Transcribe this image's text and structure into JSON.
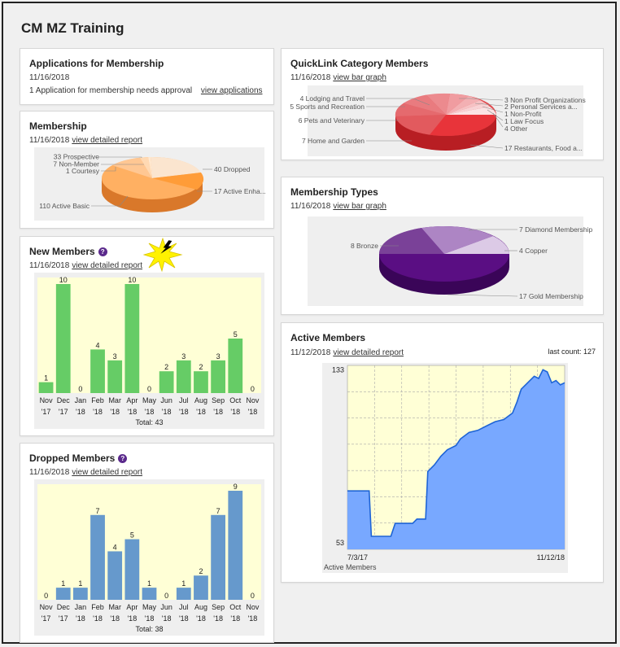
{
  "page": {
    "title": "CM MZ Training"
  },
  "applications": {
    "title": "Applications for Membership",
    "date": "11/16/2018",
    "message": "1 Application for membership needs approval",
    "link": "view applications"
  },
  "membership": {
    "title": "Membership",
    "date": "11/16/2018",
    "link": "view detailed report",
    "labels": [
      "33 Prospective",
      "7 Non-Member",
      "1 Courtesy",
      "110 Active Basic",
      "40 Dropped",
      "17 Active Enha..."
    ]
  },
  "quicklink": {
    "title": "QuickLink Category Members",
    "date": "11/16/2018",
    "link": "view bar graph",
    "labels_left": [
      "4 Lodging and Travel",
      "5 Sports and Recreation",
      "6 Pets and Veterinary",
      "7 Home and Garden"
    ],
    "labels_right": [
      "3 Non Profit Organizations",
      "2 Personal Services a...",
      "1 Non-Profit",
      "1 Law Focus",
      "4 Other",
      "17 Restaurants, Food a..."
    ]
  },
  "membership_types": {
    "title": "Membership Types",
    "date": "11/16/2018",
    "link": "view bar graph",
    "labels": [
      "8 Bronze",
      "7 Diamond Membership",
      "4 Copper",
      "17 Gold Membership"
    ]
  },
  "active_members": {
    "title": "Active Members",
    "date": "11/12/2018",
    "link": "view detailed report",
    "last_count": "last count: 127",
    "y_top": "133",
    "y_bottom": "53",
    "x_start": "7/3/17",
    "x_end": "11/12/18",
    "footer": "Active Members"
  },
  "new_members": {
    "title": "New Members",
    "date": "11/16/2018",
    "link": "view detailed report",
    "total": "Total: 43"
  },
  "dropped_members": {
    "title": "Dropped Members",
    "date": "11/16/2018",
    "link": "view detailed report",
    "total": "Total: 38"
  },
  "icons": {
    "help": "?"
  },
  "colors": {
    "green_bar": "#66cc66",
    "blue_bar": "#6699cc",
    "chart_bg": "#ffffd6",
    "active_fill": "#78a8ff",
    "active_line": "#1e64d6",
    "help": "#5b2a8c"
  },
  "chart_data": [
    {
      "id": "new_members",
      "type": "bar",
      "title": "New Members",
      "categories": [
        "Nov '17",
        "Dec '17",
        "Jan '18",
        "Feb '18",
        "Mar '18",
        "Apr '18",
        "May '18",
        "Jun '18",
        "Jul '18",
        "Aug '18",
        "Sep '18",
        "Oct '18",
        "Nov '18"
      ],
      "cat_top": [
        "Nov",
        "Dec",
        "Jan",
        "Feb",
        "Mar",
        "Apr",
        "May",
        "Jun",
        "Jul",
        "Aug",
        "Sep",
        "Oct",
        "Nov"
      ],
      "cat_bottom": [
        "'17",
        "'17",
        "'18",
        "'18",
        "'18",
        "'18",
        "'18",
        "'18",
        "'18",
        "'18",
        "'18",
        "'18",
        "'18"
      ],
      "values": [
        1,
        10,
        0,
        4,
        3,
        10,
        0,
        2,
        3,
        2,
        3,
        5,
        0
      ],
      "ylim": [
        0,
        10
      ]
    },
    {
      "id": "dropped_members",
      "type": "bar",
      "title": "Dropped Members",
      "categories": [
        "Nov '17",
        "Dec '17",
        "Jan '18",
        "Feb '18",
        "Mar '18",
        "Apr '18",
        "May '18",
        "Jun '18",
        "Jul '18",
        "Aug '18",
        "Sep '18",
        "Oct '18",
        "Nov '18"
      ],
      "cat_top": [
        "Nov",
        "Dec",
        "Jan",
        "Feb",
        "Mar",
        "Apr",
        "May",
        "Jun",
        "Jul",
        "Aug",
        "Sep",
        "Oct",
        "Nov"
      ],
      "cat_bottom": [
        "'17",
        "'17",
        "'18",
        "'18",
        "'18",
        "'18",
        "'18",
        "'18",
        "'18",
        "'18",
        "'18",
        "'18",
        "'18"
      ],
      "values": [
        0,
        1,
        1,
        7,
        4,
        5,
        1,
        0,
        1,
        2,
        7,
        9,
        0
      ],
      "ylim": [
        0,
        9
      ]
    },
    {
      "id": "membership",
      "type": "pie",
      "title": "Membership",
      "labels": [
        "Active Basic",
        "Prospective",
        "Non-Member",
        "Courtesy",
        "Dropped",
        "Active Enha..."
      ],
      "values": [
        110,
        33,
        7,
        1,
        40,
        17
      ]
    },
    {
      "id": "quicklink",
      "type": "pie",
      "title": "QuickLink Category Members",
      "labels": [
        "Restaurants, Food a...",
        "Home and Garden",
        "Pets and Veterinary",
        "Sports and Recreation",
        "Lodging and Travel",
        "Non Profit Organizations",
        "Personal Services a...",
        "Non-Profit",
        "Law Focus",
        "Other"
      ],
      "values": [
        17,
        7,
        6,
        5,
        4,
        3,
        2,
        1,
        1,
        4
      ]
    },
    {
      "id": "membership_types",
      "type": "pie",
      "title": "Membership Types",
      "labels": [
        "Gold Membership",
        "Bronze",
        "Diamond Membership",
        "Copper"
      ],
      "values": [
        17,
        8,
        7,
        4
      ]
    },
    {
      "id": "active_members",
      "type": "area",
      "title": "Active Members",
      "ylim": [
        50,
        135
      ],
      "x_range": [
        "7/3/17",
        "11/12/18"
      ],
      "x": [
        0,
        0.05,
        0.1,
        0.11,
        0.2,
        0.22,
        0.3,
        0.32,
        0.36,
        0.37,
        0.4,
        0.43,
        0.46,
        0.5,
        0.52,
        0.56,
        0.6,
        0.64,
        0.68,
        0.72,
        0.76,
        0.78,
        0.8,
        0.82,
        0.84,
        0.86,
        0.88,
        0.9,
        0.92,
        0.94,
        0.96,
        0.98,
        1.0
      ],
      "y": [
        77,
        77,
        77,
        56,
        56,
        62,
        62,
        64,
        64,
        86,
        89,
        93,
        96,
        98,
        101,
        104,
        105,
        107,
        109,
        110,
        113,
        118,
        124,
        126,
        128,
        130,
        129,
        133,
        132,
        127,
        128,
        126,
        127
      ]
    }
  ]
}
